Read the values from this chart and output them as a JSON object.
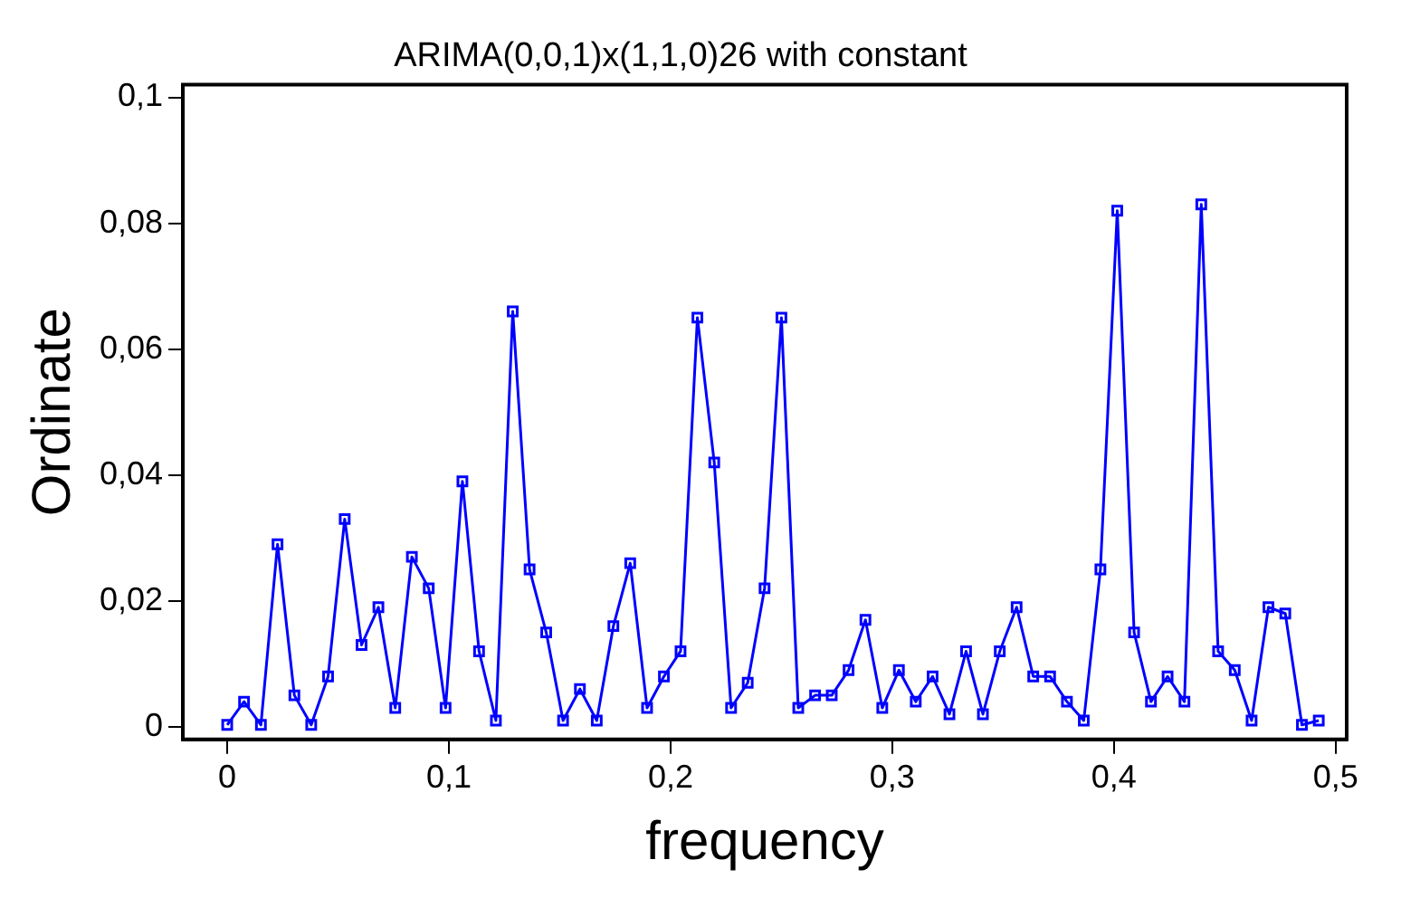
{
  "chart_data": {
    "type": "line",
    "title": "ARIMA(0,0,1)x(1,1,0)26 with constant",
    "xlabel": "frequency",
    "ylabel": "Ordinate",
    "x": [
      0,
      0.0076,
      0.0152,
      0.0227,
      0.0303,
      0.0379,
      0.0455,
      0.053,
      0.0606,
      0.0682,
      0.0758,
      0.0833,
      0.0909,
      0.0985,
      0.1061,
      0.1136,
      0.1212,
      0.1288,
      0.1364,
      0.1439,
      0.1515,
      0.1591,
      0.1667,
      0.1742,
      0.1818,
      0.1894,
      0.197,
      0.2045,
      0.2121,
      0.2197,
      0.2273,
      0.2348,
      0.2424,
      0.25,
      0.2576,
      0.2652,
      0.2727,
      0.2803,
      0.2879,
      0.2955,
      0.303,
      0.3106,
      0.3182,
      0.3258,
      0.3333,
      0.3409,
      0.3485,
      0.3561,
      0.3636,
      0.3712,
      0.3788,
      0.3864,
      0.3939,
      0.4015,
      0.4091,
      0.4167,
      0.4242,
      0.4318,
      0.4394,
      0.447,
      0.4545,
      0.4621,
      0.4697,
      0.4773,
      0.4848,
      0.4924
    ],
    "series": [
      {
        "color": "#0000ff",
        "values": [
          0.0003,
          0.004,
          0.0003,
          0.029,
          0.005,
          0.0003,
          0.008,
          0.033,
          0.013,
          0.019,
          0.003,
          0.027,
          0.022,
          0.003,
          0.039,
          0.012,
          0.001,
          0.066,
          0.025,
          0.015,
          0.001,
          0.006,
          0.001,
          0.016,
          0.026,
          0.003,
          0.008,
          0.012,
          0.065,
          0.042,
          0.003,
          0.007,
          0.022,
          0.065,
          0.003,
          0.005,
          0.005,
          0.009,
          0.017,
          0.003,
          0.009,
          0.004,
          0.008,
          0.002,
          0.012,
          0.002,
          0.012,
          0.019,
          0.008,
          0.008,
          0.004,
          0.001,
          0.025,
          0.082,
          0.015,
          0.004,
          0.008,
          0.004,
          0.083,
          0.012,
          0.009,
          0.001,
          0.019,
          0.018,
          0.0003,
          0.001
        ]
      }
    ],
    "xlim": [
      -0.02,
      0.505
    ],
    "ylim": [
      -0.002,
      0.102
    ],
    "xticks": [
      0,
      {
        "value": 0.1,
        "label": "0,1"
      },
      {
        "value": 0.2,
        "label": "0,2"
      },
      {
        "value": 0.3,
        "label": "0,3"
      },
      {
        "value": 0.4,
        "label": "0,4"
      },
      {
        "value": 0.5,
        "label": "0,5"
      }
    ],
    "yticks": [
      0,
      {
        "value": 0.02,
        "label": "0,02"
      },
      {
        "value": 0.04,
        "label": "0,04"
      },
      {
        "value": 0.06,
        "label": "0,06"
      },
      {
        "value": 0.08,
        "label": "0,08"
      },
      {
        "value": 0.1,
        "label": "0,1"
      }
    ],
    "grid": false,
    "legend": false,
    "marker": "square",
    "line_style": "solid"
  }
}
